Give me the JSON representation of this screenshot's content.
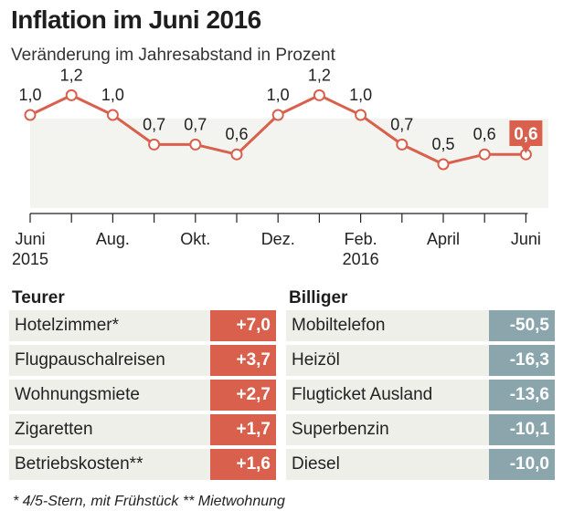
{
  "chart_data": {
    "type": "line",
    "title": "Inflation im Juni 2016",
    "subtitle": "Veränderung im Jahresabstand in Prozent",
    "values": [
      1.0,
      1.2,
      1.0,
      0.7,
      0.7,
      0.6,
      1.0,
      1.2,
      1.0,
      0.7,
      0.5,
      0.6,
      0.6
    ],
    "value_labels": [
      "1,0",
      "1,2",
      "1,0",
      "0,7",
      "0,7",
      "0,6",
      "1,0",
      "1,2",
      "1,0",
      "0,7",
      "0,5",
      "0,6",
      "0,6"
    ],
    "x_ticks": [
      {
        "index": 0,
        "label": "Juni",
        "sublabel": "2015"
      },
      {
        "index": 2,
        "label": "Aug.",
        "sublabel": ""
      },
      {
        "index": 4,
        "label": "Okt.",
        "sublabel": ""
      },
      {
        "index": 6,
        "label": "Dez.",
        "sublabel": ""
      },
      {
        "index": 8,
        "label": "Feb.",
        "sublabel": "2016"
      },
      {
        "index": 10,
        "label": "April",
        "sublabel": ""
      },
      {
        "index": 12,
        "label": "Juni",
        "sublabel": ""
      }
    ],
    "highlight_index": 12,
    "ylim": [
      0,
      1.4
    ],
    "colors": {
      "line": "#d9604d",
      "highlight": "#d9604d",
      "area": "#f3f3ef"
    }
  },
  "tables": {
    "teurer": {
      "heading": "Teurer",
      "items": [
        {
          "label": "Hotelzimmer*",
          "value": "+7,0"
        },
        {
          "label": "Flugpauschalreisen",
          "value": "+3,7"
        },
        {
          "label": "Wohnungsmiete",
          "value": "+2,7"
        },
        {
          "label": "Zigaretten",
          "value": "+1,7"
        },
        {
          "label": "Betriebskosten**",
          "value": "+1,6"
        }
      ]
    },
    "billiger": {
      "heading": "Billiger",
      "items": [
        {
          "label": "Mobiltelefon",
          "value": "-50,5"
        },
        {
          "label": "Heizöl",
          "value": "-16,3"
        },
        {
          "label": "Flugticket Ausland",
          "value": "-13,6"
        },
        {
          "label": "Superbenzin",
          "value": "-10,1"
        },
        {
          "label": "Diesel",
          "value": "-10,0"
        }
      ]
    }
  },
  "footnote": "* 4/5-Stern, mit Frühstück   ** Mietwohnung",
  "colors": {
    "teurer": "#d9604d",
    "billiger": "#8aa6ac",
    "row_bg": "#efefea"
  }
}
